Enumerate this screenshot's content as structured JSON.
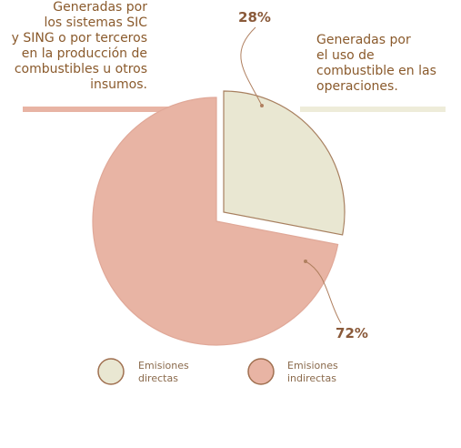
{
  "chart_data": {
    "type": "pie",
    "categories": [
      "Emisiones directas",
      "Emisiones indirectas"
    ],
    "values": [
      28,
      72
    ],
    "value_labels": [
      "28%",
      "72%"
    ],
    "colors": [
      "#e9e7d2",
      "#e8b4a4"
    ],
    "annotations": [
      {
        "lines": [
          "Generadas por",
          "los sistemas SIC",
          "y SING o por terceros",
          "en la producción de",
          "combustibles u otros",
          "insumos."
        ]
      },
      {
        "lines": [
          "Generadas por",
          "el uso de",
          "combustible en las",
          "operaciones."
        ]
      }
    ]
  }
}
